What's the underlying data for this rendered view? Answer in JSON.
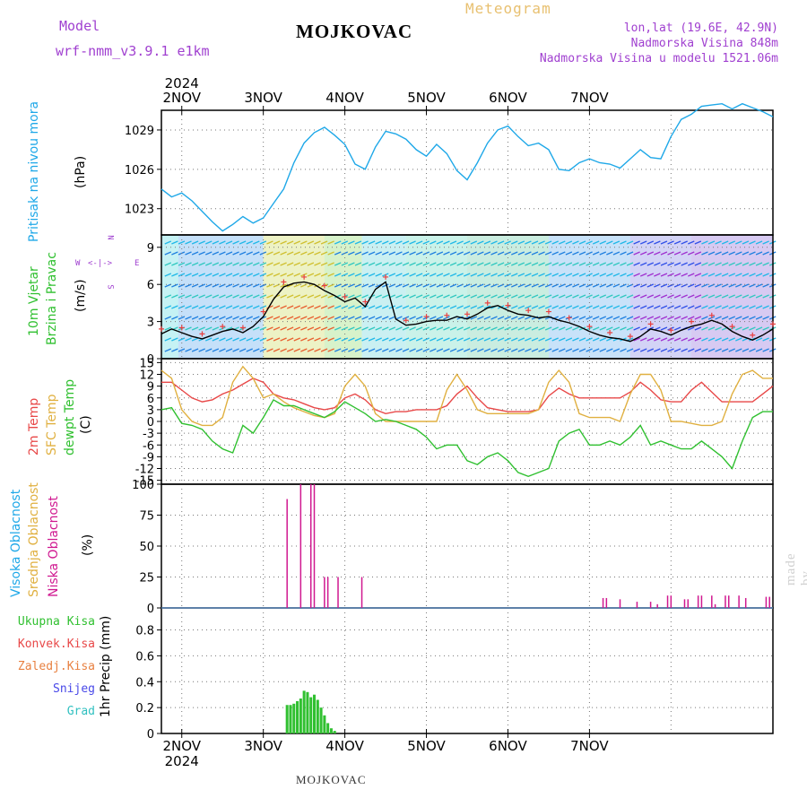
{
  "header": {
    "model_label": "Model",
    "model_name": "wrf-nmm_v3.9.1 e1km",
    "station": "MOJKOVAC",
    "product": "Meteogram",
    "coords": "lon,lat (19.6E, 42.9N)",
    "elevation": "Nadmorska Visina 848m",
    "model_elevation": "Nadmorska Visina u modelu 1521.06m",
    "year": "2024",
    "footer_station": "MOJKOVAC",
    "watermark": "made by Angel"
  },
  "colors": {
    "pressure": "#1fa8e8",
    "temp2m": "#e84848",
    "sfc_temp": "#e0b040",
    "dewpt": "#30c030",
    "precip": "#30c030",
    "cloud_low": "#d01890",
    "purple_text": "#a040d0"
  },
  "x_axis": {
    "day_labels": [
      "2NOV",
      "3NOV",
      "4NOV",
      "5NOV",
      "6NOV",
      "7NOV"
    ],
    "range_hours": [
      -6,
      174
    ]
  },
  "panel_labels": {
    "pressure": [
      "Pritisak na nivou mora",
      "(hPa)"
    ],
    "wind": [
      "10m Vjetar",
      "Brzina i Pravac",
      "(m/s)"
    ],
    "wind_compass": [
      "N",
      "S",
      "W",
      "E"
    ],
    "temp": [
      "2m Temp",
      "SFC Temp",
      "dewpt Temp",
      "(C)"
    ],
    "cloud": [
      "Visoka Oblacnost",
      "Srednja Oblacnost",
      "Niska Oblacnost",
      "(%)"
    ],
    "precip_legend": [
      "Ukupna Kisa",
      "Konvek.Kisa",
      "Zaledj.Kisa",
      "Snijeg",
      "Grad"
    ],
    "precip_axis": "1hr Precip (mm)"
  },
  "chart_data": [
    {
      "type": "line",
      "panel": "pressure",
      "ylabel": "(hPa)",
      "y_ticks": [
        1023,
        1026,
        1029
      ],
      "ylim": [
        1021,
        1030.5
      ],
      "grid": true,
      "series": [
        {
          "name": "Pritisak na nivou mora",
          "x": [
            -6,
            -3,
            0,
            3,
            6,
            9,
            12,
            15,
            18,
            21,
            24,
            27,
            30,
            33,
            36,
            39,
            42,
            45,
            48,
            51,
            54,
            57,
            60,
            63,
            66,
            69,
            72,
            75,
            78,
            81,
            84,
            87,
            90,
            93,
            96,
            99,
            102,
            105,
            108,
            111,
            114,
            117,
            120,
            123,
            126,
            129,
            132,
            135,
            138,
            141,
            144,
            147,
            150,
            153,
            156,
            159,
            162,
            165,
            168,
            171,
            174
          ],
          "y": [
            1024.5,
            1023.9,
            1024.2,
            1023.6,
            1022.8,
            1022.0,
            1021.3,
            1021.8,
            1022.4,
            1021.9,
            1022.3,
            1023.4,
            1024.5,
            1026.5,
            1028.0,
            1028.8,
            1029.2,
            1028.6,
            1027.9,
            1026.4,
            1026.0,
            1027.7,
            1028.9,
            1028.7,
            1028.3,
            1027.5,
            1027.0,
            1027.9,
            1027.2,
            1025.9,
            1025.2,
            1026.5,
            1028.0,
            1029.0,
            1029.3,
            1028.5,
            1027.8,
            1028.0,
            1027.5,
            1026.0,
            1025.9,
            1026.5,
            1026.8,
            1026.5,
            1026.4,
            1026.1,
            1026.8,
            1027.5,
            1026.9,
            1026.8,
            1028.5,
            1029.8,
            1030.2,
            1030.8,
            1030.9,
            1031.0,
            1030.6,
            1031.0,
            1030.7,
            1030.4,
            1030.0
          ]
        }
      ]
    },
    {
      "type": "line",
      "panel": "wind",
      "ylabel": "(m/s)",
      "y_ticks": [
        0,
        3,
        6,
        9
      ],
      "ylim": [
        0,
        10
      ],
      "grid": true,
      "series": [
        {
          "name": "10m Vjetar",
          "x": [
            -6,
            -3,
            0,
            3,
            6,
            9,
            12,
            15,
            18,
            21,
            24,
            27,
            30,
            33,
            36,
            39,
            42,
            45,
            48,
            51,
            54,
            57,
            60,
            63,
            66,
            69,
            72,
            75,
            78,
            81,
            84,
            87,
            90,
            93,
            96,
            99,
            102,
            105,
            108,
            111,
            114,
            117,
            120,
            123,
            126,
            129,
            132,
            135,
            138,
            141,
            144,
            147,
            150,
            153,
            156,
            159,
            162,
            165,
            168,
            171,
            174
          ],
          "y": [
            2.0,
            2.4,
            2.1,
            1.8,
            1.6,
            1.9,
            2.2,
            2.4,
            2.1,
            2.6,
            3.4,
            4.8,
            5.8,
            6.1,
            6.2,
            6.0,
            5.5,
            5.1,
            4.6,
            4.9,
            4.2,
            5.6,
            6.2,
            3.2,
            2.7,
            2.8,
            3.0,
            3.1,
            3.1,
            3.4,
            3.2,
            3.6,
            4.1,
            4.3,
            3.9,
            3.6,
            3.5,
            3.3,
            3.4,
            3.1,
            2.9,
            2.6,
            2.2,
            1.9,
            1.7,
            1.6,
            1.4,
            1.8,
            2.4,
            2.2,
            1.9,
            2.3,
            2.6,
            2.8,
            3.1,
            2.8,
            2.2,
            1.8,
            1.5,
            1.9,
            2.4
          ]
        }
      ]
    },
    {
      "type": "line",
      "panel": "temperature",
      "ylabel": "(C)",
      "y_ticks": [
        15,
        12,
        9,
        6,
        3,
        0,
        -3,
        -6,
        -9,
        -12,
        -15
      ],
      "ylim": [
        -16,
        16
      ],
      "grid": true,
      "series": [
        {
          "name": "2m Temp",
          "x": [
            -6,
            -3,
            0,
            3,
            6,
            9,
            12,
            15,
            18,
            21,
            24,
            27,
            30,
            33,
            36,
            39,
            42,
            45,
            48,
            51,
            54,
            57,
            60,
            63,
            66,
            69,
            72,
            75,
            78,
            81,
            84,
            87,
            90,
            93,
            96,
            99,
            102,
            105,
            108,
            111,
            114,
            117,
            120,
            123,
            126,
            129,
            132,
            135,
            138,
            141,
            144,
            147,
            150,
            153,
            156,
            159,
            162,
            165,
            168,
            171,
            174
          ],
          "y": [
            10,
            10,
            8,
            6,
            5,
            5.5,
            7,
            8,
            9.5,
            11,
            10,
            7,
            6,
            5.5,
            4.5,
            3.5,
            3,
            3.5,
            6,
            7,
            5.5,
            3,
            2,
            2.5,
            2.5,
            3,
            3,
            3,
            4,
            7,
            9,
            6,
            3.5,
            3,
            2.5,
            2.5,
            2.5,
            3,
            6.5,
            8.5,
            7,
            6,
            6,
            6,
            6,
            6,
            7.5,
            10,
            8,
            5.5,
            5,
            5,
            8,
            10,
            7.5,
            5,
            5,
            5,
            5,
            7,
            9
          ]
        },
        {
          "name": "SFC Temp",
          "x": [
            -6,
            -3,
            0,
            3,
            6,
            9,
            12,
            15,
            18,
            21,
            24,
            27,
            30,
            33,
            36,
            39,
            42,
            45,
            48,
            51,
            54,
            57,
            60,
            63,
            66,
            69,
            72,
            75,
            78,
            81,
            84,
            87,
            90,
            93,
            96,
            99,
            102,
            105,
            108,
            111,
            114,
            117,
            120,
            123,
            126,
            129,
            132,
            135,
            138,
            141,
            144,
            147,
            150,
            153,
            156,
            159,
            162,
            165,
            168,
            171,
            174
          ],
          "y": [
            13,
            11,
            3,
            0,
            -1,
            -1,
            1,
            10,
            14,
            11,
            6,
            7,
            5,
            3.5,
            2.5,
            1.5,
            1,
            2,
            9,
            12,
            9,
            2,
            0,
            0,
            0,
            0,
            0,
            0,
            8,
            12,
            8,
            3,
            2,
            2,
            2,
            2,
            2,
            3,
            10,
            13,
            10,
            2,
            1,
            1,
            1,
            0,
            7,
            12,
            12,
            8,
            0,
            0,
            -0.5,
            -1,
            -1,
            0,
            7,
            12,
            13,
            11,
            11
          ]
        },
        {
          "name": "dewpt Temp",
          "x": [
            -6,
            -3,
            0,
            3,
            6,
            9,
            12,
            15,
            18,
            21,
            24,
            27,
            30,
            33,
            36,
            39,
            42,
            45,
            48,
            51,
            54,
            57,
            60,
            63,
            66,
            69,
            72,
            75,
            78,
            81,
            84,
            87,
            90,
            93,
            96,
            99,
            102,
            105,
            108,
            111,
            114,
            117,
            120,
            123,
            126,
            129,
            132,
            135,
            138,
            141,
            144,
            147,
            150,
            153,
            156,
            159,
            162,
            165,
            168,
            171,
            174
          ],
          "y": [
            3,
            3.5,
            -0.5,
            -1,
            -2,
            -5,
            -7,
            -8,
            -1,
            -3,
            1,
            5.5,
            4,
            4,
            3,
            2,
            1,
            2.5,
            5,
            3.5,
            2,
            0,
            0.5,
            0,
            -1,
            -2,
            -4,
            -7,
            -6,
            -6,
            -10,
            -11,
            -9,
            -8,
            -10,
            -13,
            -14,
            -13,
            -12,
            -5,
            -3,
            -2,
            -6,
            -6,
            -5,
            -6,
            -4,
            -1,
            -6,
            -5,
            -6,
            -7,
            -7,
            -5,
            -7,
            -9,
            -12,
            -5,
            1,
            2.5,
            2.5
          ]
        }
      ]
    },
    {
      "type": "bar",
      "panel": "clouds",
      "ylabel": "(%)",
      "y_ticks": [
        0,
        25,
        50,
        75,
        100
      ],
      "ylim": [
        0,
        100
      ],
      "grid": true,
      "series": [
        {
          "name": "Niska Oblacnost",
          "x": [
            31,
            35,
            38,
            39,
            42,
            43,
            46,
            53,
            124,
            125,
            129,
            134,
            138,
            140,
            143,
            144,
            148,
            149,
            152,
            153,
            156,
            157,
            160,
            161,
            164,
            166,
            172,
            173
          ],
          "values": [
            88,
            100,
            100,
            100,
            25,
            25,
            25,
            25,
            8,
            8,
            7,
            5,
            5,
            3,
            10,
            10,
            7,
            7,
            10,
            10,
            10,
            3,
            10,
            10,
            10,
            8,
            9,
            9
          ]
        }
      ]
    },
    {
      "type": "bar",
      "panel": "precipitation",
      "ylabel": "1hr Precip (mm)",
      "y_ticks": [
        0,
        0.2,
        0.4,
        0.6,
        0.8
      ],
      "ylim": [
        0,
        0.97
      ],
      "grid": true,
      "series": [
        {
          "name": "Ukupna Kisa",
          "x": [
            31,
            32,
            33,
            34,
            35,
            36,
            37,
            38,
            39,
            40,
            41,
            42,
            43,
            44,
            45
          ],
          "values": [
            0.22,
            0.22,
            0.23,
            0.25,
            0.27,
            0.33,
            0.32,
            0.28,
            0.3,
            0.26,
            0.2,
            0.14,
            0.08,
            0.04,
            0.02
          ]
        }
      ]
    }
  ]
}
